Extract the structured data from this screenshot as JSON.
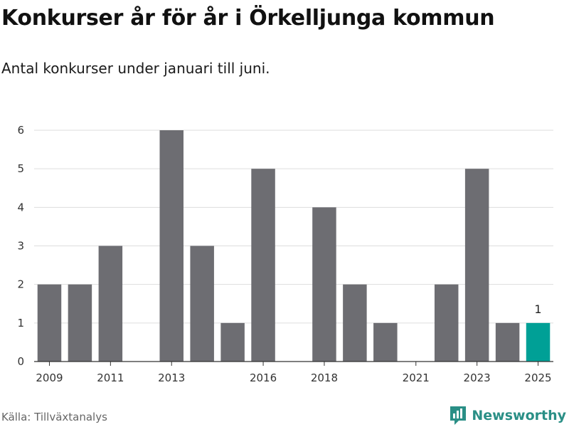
{
  "title": "Konkurser år för år i Örkelljunga kommun",
  "subtitle": "Antal konkurser under januari till juni.",
  "source": "Källa: Tillväxtanalys",
  "brand": "Newsworthy",
  "colors": {
    "bar": "#6d6d72",
    "highlight": "#00a096",
    "grid": "#dddddd",
    "axis": "#333333",
    "brand": "#2a8f86"
  },
  "chart_data": {
    "type": "bar",
    "x": [
      2009,
      2010,
      2011,
      2012,
      2013,
      2014,
      2015,
      2016,
      2017,
      2018,
      2019,
      2020,
      2021,
      2022,
      2023,
      2024,
      2025
    ],
    "values": [
      2,
      2,
      3,
      0,
      6,
      3,
      1,
      5,
      0,
      4,
      2,
      1,
      0,
      2,
      5,
      1,
      1
    ],
    "highlight": 2025,
    "data_labels": [
      {
        "x": 2025,
        "text": "1"
      }
    ],
    "xticks": [
      "2009",
      "2011",
      "2013",
      "2016",
      "2018",
      "2021",
      "2023",
      "2025"
    ],
    "yticks": [
      "0",
      "1",
      "2",
      "3",
      "4",
      "5",
      "6"
    ],
    "ylim": [
      0,
      6
    ],
    "grid": true
  }
}
